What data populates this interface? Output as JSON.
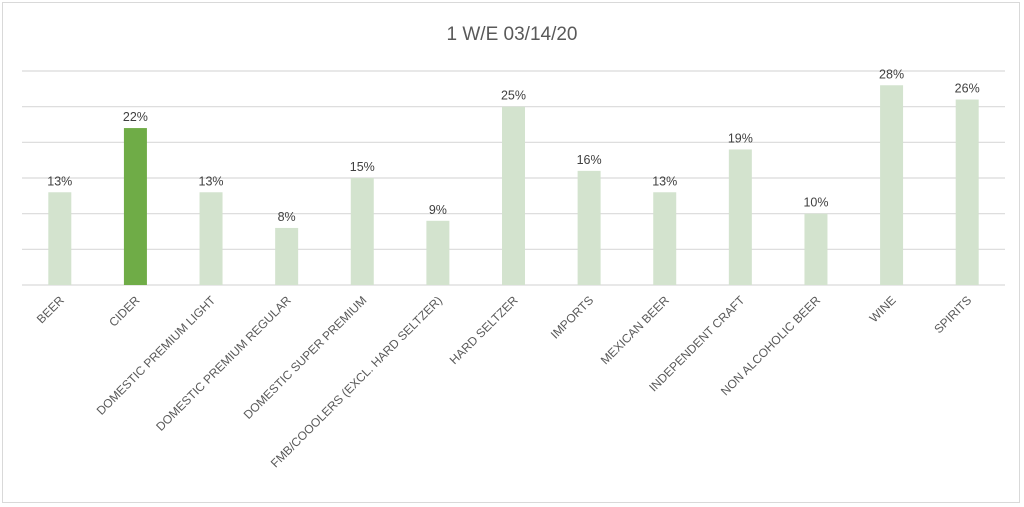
{
  "chart_data": {
    "type": "bar",
    "title": "1 W/E 03/14/20",
    "xlabel": "",
    "ylabel": "",
    "categories": [
      "BEER",
      "CIDER",
      "DOMESTIC PREMIUM LIGHT",
      "DOMESTIC PREMIUM REGULAR",
      "DOMESTIC SUPER PREMIUM",
      "FMB/COOOLERS (EXCL. HARD SELTZER)",
      "HARD SELTZER",
      "IMPORTS",
      "MEXICAN BEER",
      "INDEPENDENT CRAFT",
      "NON ALCOHOLIC BEER",
      "WINE",
      "SPIRITS"
    ],
    "values": [
      13,
      22,
      13,
      8,
      15,
      9,
      25,
      16,
      13,
      19,
      10,
      28,
      26
    ],
    "data_labels": [
      "13%",
      "22%",
      "13%",
      "8%",
      "15%",
      "9%",
      "25%",
      "16%",
      "13%",
      "19%",
      "10%",
      "28%",
      "26%"
    ],
    "unit": "%",
    "ylim": [
      0,
      30
    ],
    "gridline_step": 5,
    "grid": true,
    "y_tick_labels_shown": false,
    "legend": "none",
    "highlighted_category": "CIDER",
    "colors": {
      "bar": "#d3e3ce",
      "bar_highlight": "#6fac47",
      "gridline": "#d9d9d9",
      "text": "#595959",
      "data_label": "#404040"
    }
  }
}
